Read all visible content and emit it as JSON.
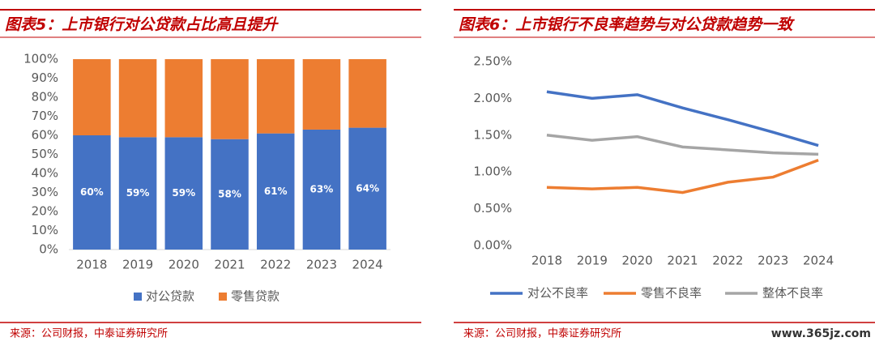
{
  "chart_data": [
    {
      "type": "bar",
      "stacked": true,
      "title": "图表5：上市银行对公贷款占比高且提升",
      "categories": [
        "2018",
        "2019",
        "2020",
        "2021",
        "2022",
        "2023",
        "2024"
      ],
      "series": [
        {
          "name": "对公贷款",
          "color": "#4472c4",
          "values": [
            60,
            59,
            59,
            58,
            61,
            63,
            64
          ],
          "value_labels": [
            "60%",
            "59%",
            "59%",
            "58%",
            "61%",
            "63%",
            "64%"
          ]
        },
        {
          "name": "零售贷款",
          "color": "#ed7d31",
          "values": [
            40,
            41,
            41,
            42,
            39,
            37,
            36
          ]
        }
      ],
      "ylim": [
        0,
        100
      ],
      "yticks": [
        {
          "value": 0,
          "label": "0%"
        },
        {
          "value": 10,
          "label": "10%"
        },
        {
          "value": 20,
          "label": "20%"
        },
        {
          "value": 30,
          "label": "30%"
        },
        {
          "value": 40,
          "label": "40%"
        },
        {
          "value": 50,
          "label": "50%"
        },
        {
          "value": 60,
          "label": "60%"
        },
        {
          "value": 70,
          "label": "70%"
        },
        {
          "value": 80,
          "label": "80%"
        },
        {
          "value": 90,
          "label": "90%"
        },
        {
          "value": 100,
          "label": "100%"
        }
      ],
      "legend": "bottom",
      "source": "来源：公司财报，中泰证券研究所"
    },
    {
      "type": "line",
      "title": "图表6：上市银行不良率趋势与对公贷款趋势一致",
      "categories": [
        "2018",
        "2019",
        "2020",
        "2021",
        "2022",
        "2023",
        "2024"
      ],
      "series": [
        {
          "name": "对公不良率",
          "color": "#4472c4",
          "values": [
            2.09,
            2.0,
            2.05,
            1.87,
            1.71,
            1.54,
            1.36
          ]
        },
        {
          "name": "零售不良率",
          "color": "#ed7d31",
          "values": [
            0.79,
            0.77,
            0.79,
            0.72,
            0.86,
            0.93,
            1.16
          ]
        },
        {
          "name": "整体不良率",
          "color": "#a5a5a5",
          "values": [
            1.5,
            1.43,
            1.48,
            1.34,
            1.3,
            1.26,
            1.24
          ]
        }
      ],
      "ylim": [
        0,
        2.5
      ],
      "yticks": [
        {
          "value": 0,
          "label": "0.00%"
        },
        {
          "value": 0.5,
          "label": "0.50%"
        },
        {
          "value": 1,
          "label": "1.00%"
        },
        {
          "value": 1.5,
          "label": "1.50%"
        },
        {
          "value": 2,
          "label": "2.00%"
        },
        {
          "value": 2.5,
          "label": "2.50%"
        }
      ],
      "legend": "bottom",
      "source": "来源：公司财报，中泰证券研究所"
    }
  ],
  "watermark": "www.365jz.com"
}
